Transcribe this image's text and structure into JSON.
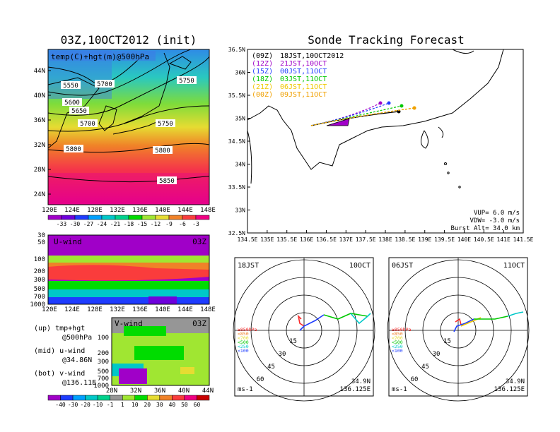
{
  "left_title": "03Z,10OCT2012 (init)",
  "right_title": "Sonde Tracking Forecast",
  "panel1": {
    "label": "temp(C)+hgt(m)@500hPa",
    "lat_ticks": [
      "44N",
      "40N",
      "36N",
      "32N",
      "28N",
      "24N"
    ],
    "lon_ticks": [
      "120E",
      "124E",
      "128E",
      "132E",
      "136E",
      "140E",
      "144E",
      "148E"
    ],
    "contours": [
      "5550",
      "5600",
      "5650",
      "5700",
      "5700",
      "5750",
      "5750",
      "5800",
      "5800",
      "5850"
    ]
  },
  "temp_colorbar": {
    "labels": [
      "-33",
      "-30",
      "-27",
      "-24",
      "-21",
      "-18",
      "-15",
      "-12",
      "-9",
      "-6",
      "-3"
    ],
    "colors": [
      "#a000c8",
      "#6e00dc",
      "#1e3cff",
      "#00a0ff",
      "#00c8c8",
      "#00d28c",
      "#00dc00",
      "#a0e632",
      "#e6dc32",
      "#f08228",
      "#fa3c3c",
      "#f00082"
    ]
  },
  "panel2": {
    "label": "U-wind",
    "time": "03Z",
    "p_ticks": [
      "30",
      "50",
      "100",
      "200",
      "300",
      "500",
      "700",
      "1000"
    ],
    "lon_ticks": [
      "120E",
      "124E",
      "128E",
      "132E",
      "136E",
      "140E",
      "144E",
      "148E"
    ]
  },
  "panel3": {
    "label": "V-wind",
    "time": "03Z",
    "p_ticks": [
      "100",
      "200",
      "300",
      "500",
      "700",
      "1000"
    ],
    "lat_ticks": [
      "28N",
      "32N",
      "36N",
      "40N",
      "44N"
    ]
  },
  "legend_left": [
    {
      "a": "(up) tmp+hgt",
      "b": "@500hPa"
    },
    {
      "a": "(mid) u-wind",
      "b": "@34.86N"
    },
    {
      "a": "(bot) v-wind",
      "b": "@136.11E"
    }
  ],
  "wind_colorbar": {
    "labels": [
      "-40",
      "-30",
      "-20",
      "-10",
      "-1",
      "1",
      "10",
      "20",
      "30",
      "40",
      "50",
      "60"
    ],
    "colors": [
      "#a000c8",
      "#1e3cff",
      "#00a0ff",
      "#00c8c8",
      "#00d28c",
      "#969696",
      "#a0e632",
      "#00dc00",
      "#e6dc32",
      "#f08228",
      "#fa3c3c",
      "#f00082",
      "#c80000"
    ]
  },
  "map": {
    "lat_ticks": [
      "36.5N",
      "36N",
      "35.5N",
      "35N",
      "34.5N",
      "34N",
      "33.5N",
      "33N",
      "32.5N"
    ],
    "lon_ticks": [
      "134.5E",
      "135E",
      "135.5E",
      "136E",
      "136.5E",
      "137E",
      "137.5E",
      "138E",
      "138.5E",
      "139E",
      "139.5E",
      "140E",
      "140.5E",
      "141E",
      "141.5E"
    ],
    "info": [
      "VUP= 6.0 m/s",
      "VDW= -3.0 m/s",
      "Burst Alt= 34.0 km"
    ]
  },
  "runs": [
    {
      "code": "(09Z)",
      "time": "18JST,10OCT2012",
      "color": "#000000"
    },
    {
      "code": "(12Z)",
      "time": "21JST,10OCT",
      "color": "#a000c8"
    },
    {
      "code": "(15Z)",
      "time": "00JST,11OCT",
      "color": "#1e3cff"
    },
    {
      "code": "(18Z)",
      "time": "03JST,11OCT",
      "color": "#00c800"
    },
    {
      "code": "(21Z)",
      "time": "06JST,11OCT",
      "color": "#f0c800"
    },
    {
      "code": "(00Z)",
      "time": "09JST,11OCT",
      "color": "#f0a000"
    }
  ],
  "hodo_left": {
    "jst": "18JST",
    "date": "10OCT",
    "lat": "34.9N",
    "lon": "136.125E",
    "unit": "ms-1",
    "rings": [
      "15",
      "30",
      "45",
      "60"
    ]
  },
  "hodo_right": {
    "jst": "06JST",
    "date": "11OCT",
    "lat": "34.9N",
    "lon": "136.125E",
    "unit": "ms-1",
    "rings": [
      "15",
      "30",
      "45",
      "60"
    ]
  },
  "hodo_levels": [
    {
      "label": "≥850hPa",
      "color": "#fa2828"
    },
    {
      "label": "<850",
      "color": "#f08228"
    },
    {
      "label": "<700",
      "color": "#e6dc32"
    },
    {
      "label": "<500",
      "color": "#00c800"
    },
    {
      "label": "<250",
      "color": "#00c8c8"
    },
    {
      "label": "<100",
      "color": "#1e3cff"
    }
  ]
}
